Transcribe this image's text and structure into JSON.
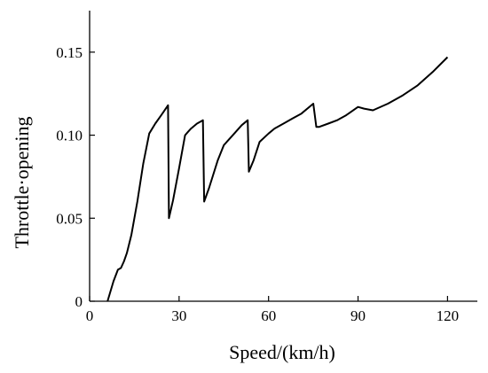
{
  "chart_data": {
    "type": "line",
    "title": "",
    "xlabel": "Speed/(km/h)",
    "ylabel": "Throttle·opening",
    "xlim": [
      0,
      130
    ],
    "ylim": [
      0,
      0.175
    ],
    "x_ticks": [
      0,
      30,
      60,
      90,
      120
    ],
    "x_tick_labels": [
      "0",
      "30",
      "60",
      "90",
      "120"
    ],
    "y_ticks": [
      0,
      0.05,
      0.1,
      0.15
    ],
    "y_tick_labels": [
      "0",
      "0.05",
      "0.10",
      "0.15"
    ],
    "grid": false,
    "legend": "none",
    "series": [
      {
        "x": [
          6,
          8,
          9.5,
          10.5,
          11.5,
          12.5,
          14,
          16,
          18,
          20,
          22,
          24,
          26.3,
          26.6,
          28,
          30,
          32,
          33,
          34,
          36,
          38,
          38.4,
          40,
          43,
          45,
          48,
          51,
          53,
          53.4,
          55,
          57,
          60,
          62,
          65,
          68,
          71,
          75,
          76,
          77,
          80,
          83,
          86,
          90,
          92,
          95,
          100,
          105,
          110,
          115,
          120
        ],
        "y": [
          0.0,
          0.012,
          0.019,
          0.02,
          0.024,
          0.029,
          0.04,
          0.06,
          0.083,
          0.101,
          0.107,
          0.112,
          0.118,
          0.05,
          0.061,
          0.08,
          0.1,
          0.102,
          0.104,
          0.107,
          0.109,
          0.06,
          0.068,
          0.085,
          0.094,
          0.1,
          0.106,
          0.109,
          0.078,
          0.085,
          0.096,
          0.101,
          0.104,
          0.107,
          0.11,
          0.113,
          0.119,
          0.105,
          0.105,
          0.107,
          0.109,
          0.112,
          0.117,
          0.116,
          0.115,
          0.119,
          0.124,
          0.13,
          0.138,
          0.147
        ]
      }
    ]
  }
}
